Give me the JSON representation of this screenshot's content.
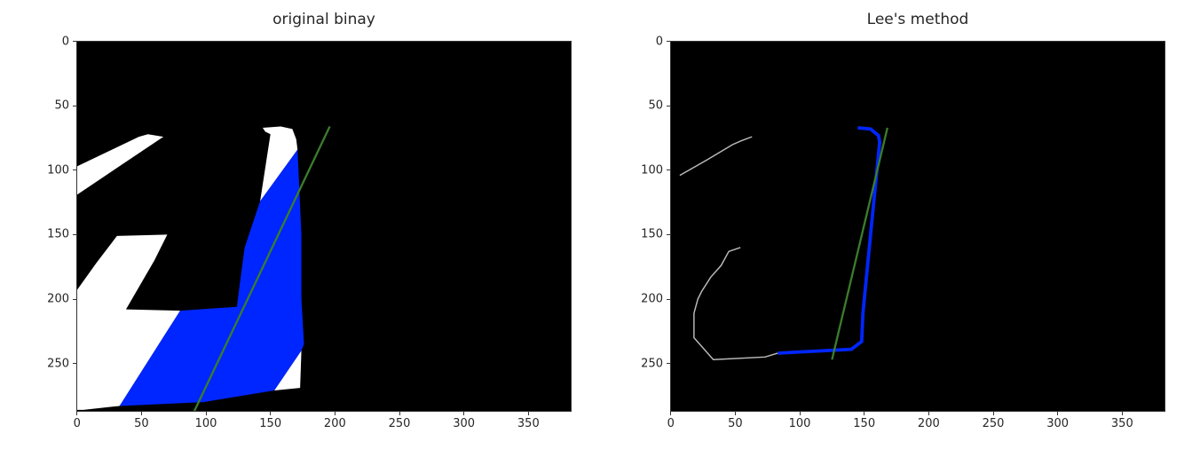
{
  "chart_data": [
    {
      "type": "image",
      "title": "original binay",
      "xlim": [
        -0.5,
        383.5
      ],
      "ylim": [
        287.5,
        -0.5
      ],
      "xticks": [
        0,
        50,
        100,
        150,
        200,
        250,
        300,
        350
      ],
      "yticks": [
        0,
        50,
        100,
        150,
        200,
        250
      ],
      "background": "#000000",
      "colors": {
        "foreground": "#ffffff",
        "region": "#0026ff",
        "fit_line": "#3a7d2c"
      },
      "fit_line": {
        "x": [
          91,
          196
        ],
        "y": [
          287,
          66
        ]
      }
    },
    {
      "type": "image",
      "title": "Lee's method",
      "xlim": [
        -0.5,
        383.5
      ],
      "ylim": [
        287.5,
        -0.5
      ],
      "xticks": [
        0,
        50,
        100,
        150,
        200,
        250,
        300,
        350
      ],
      "yticks": [
        0,
        50,
        100,
        150,
        200,
        250
      ],
      "background": "#000000",
      "colors": {
        "skeleton": "#bbbbbb",
        "selected": "#0026ff",
        "fit_line": "#3a7d2c"
      },
      "fit_line": {
        "x": [
          125,
          168
        ],
        "y": [
          247,
          67
        ]
      }
    }
  ]
}
